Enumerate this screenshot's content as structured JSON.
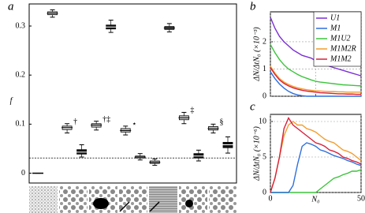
{
  "chart_data": [
    {
      "type": "box",
      "panel": "a",
      "ylabel": "f",
      "ylim": [
        -0.02,
        0.345
      ],
      "yticks": [
        0,
        0.1,
        0.2,
        0.3
      ],
      "hline": 0.031,
      "boxes": [
        {
          "median": 0,
          "q1": 0,
          "q3": 0,
          "whislo": 0,
          "whishi": 0,
          "color": "none"
        },
        {
          "median": 0.326,
          "q1": 0.323,
          "q3": 0.329,
          "whislo": 0.318,
          "whishi": 0.333,
          "color": "#cccccc"
        },
        {
          "median": 0.093,
          "q1": 0.089,
          "q3": 0.096,
          "whislo": 0.082,
          "whishi": 0.101,
          "color": "#dddddd",
          "annotation": "†"
        },
        {
          "median": 0.043,
          "q1": 0.039,
          "q3": 0.048,
          "whislo": 0.033,
          "whishi": 0.058,
          "color": "#111111"
        },
        {
          "median": 0.098,
          "q1": 0.094,
          "q3": 0.101,
          "whislo": 0.088,
          "whishi": 0.106,
          "color": "#cccccc",
          "annotation": "†‡"
        },
        {
          "median": 0.298,
          "q1": 0.294,
          "q3": 0.302,
          "whislo": 0.287,
          "whishi": 0.312,
          "color": "#111111"
        },
        {
          "median": 0.087,
          "q1": 0.084,
          "q3": 0.091,
          "whislo": 0.078,
          "whishi": 0.096,
          "color": "#cccccc",
          "annotation": "⋆"
        },
        {
          "median": 0.033,
          "q1": 0.031,
          "q3": 0.035,
          "whislo": 0.027,
          "whishi": 0.04,
          "color": "#cccccc"
        },
        {
          "median": 0.022,
          "q1": 0.02,
          "q3": 0.025,
          "whislo": 0.016,
          "whishi": 0.029,
          "color": "#cccccc"
        },
        {
          "median": 0.296,
          "q1": 0.293,
          "q3": 0.299,
          "whislo": 0.288,
          "whishi": 0.305,
          "color": "#555555"
        },
        {
          "median": 0.113,
          "q1": 0.109,
          "q3": 0.117,
          "whislo": 0.101,
          "whishi": 0.124,
          "color": "#cccccc",
          "annotation": "‡"
        },
        {
          "median": 0.035,
          "q1": 0.031,
          "q3": 0.04,
          "whislo": 0.025,
          "whishi": 0.047,
          "color": "#111111"
        },
        {
          "median": 0.091,
          "q1": 0.088,
          "q3": 0.095,
          "whislo": 0.082,
          "whishi": 0.1,
          "color": "#cccccc",
          "annotation": "§"
        },
        {
          "median": 0.058,
          "q1": 0.052,
          "q3": 0.063,
          "whislo": 0.041,
          "whishi": 0.074,
          "color": "#111111"
        }
      ]
    },
    {
      "type": "line",
      "panel": "b",
      "ylabel": "ΔN/ΔtN₀ (×10⁻³)",
      "xlim": [
        0,
        50
      ],
      "xticks": [
        0,
        25,
        50
      ],
      "ylim": [
        0,
        3.1
      ],
      "yticks": [
        0,
        1,
        2
      ],
      "grid": true,
      "legend": "upper right",
      "x": [
        0,
        2.5,
        5,
        7.5,
        10,
        12.5,
        15,
        17.5,
        20,
        22.5,
        25,
        27.5,
        30,
        32.5,
        35,
        37.5,
        40,
        42.5,
        45,
        47.5,
        50
      ],
      "series": [
        {
          "name": "U1",
          "color": "#7b2fd6",
          "values": [
            2.9,
            2.5,
            2.2,
            2.0,
            1.85,
            1.7,
            1.6,
            1.5,
            1.45,
            1.4,
            1.3,
            1.25,
            1.2,
            1.1,
            1.05,
            1.0,
            0.95,
            0.9,
            0.85,
            0.8,
            0.75
          ]
        },
        {
          "name": "M1",
          "color": "#2f6fdc",
          "values": [
            0.9,
            0.65,
            0.45,
            0.3,
            0.18,
            0.1,
            0.05,
            0.02,
            0,
            0,
            0,
            0,
            0,
            0,
            0,
            0,
            0,
            0,
            0,
            0,
            0
          ]
        },
        {
          "name": "M1U2",
          "color": "#3cc43c",
          "values": [
            1.9,
            1.6,
            1.35,
            1.15,
            1.0,
            0.9,
            0.8,
            0.72,
            0.66,
            0.6,
            0.55,
            0.52,
            0.5,
            0.48,
            0.46,
            0.44,
            0.42,
            0.41,
            0.4,
            0.39,
            0.38
          ]
        },
        {
          "name": "M1M2R",
          "color": "#f39c2c",
          "values": [
            1.1,
            0.85,
            0.65,
            0.52,
            0.43,
            0.36,
            0.31,
            0.27,
            0.24,
            0.22,
            0.2,
            0.19,
            0.18,
            0.17,
            0.17,
            0.16,
            0.16,
            0.15,
            0.15,
            0.15,
            0.15
          ]
        },
        {
          "name": "M1M2",
          "color": "#d8203a",
          "values": [
            1.05,
            0.8,
            0.6,
            0.47,
            0.38,
            0.31,
            0.26,
            0.22,
            0.19,
            0.17,
            0.15,
            0.13,
            0.12,
            0.11,
            0.1,
            0.09,
            0.09,
            0.08,
            0.08,
            0.07,
            0.07
          ]
        }
      ]
    },
    {
      "type": "line",
      "panel": "c",
      "ylabel": "ΔN/ΔtN₀ (×10⁻⁶)",
      "xlabel": "N₀",
      "xlim": [
        0,
        50
      ],
      "xticks": [
        0,
        50
      ],
      "ylim": [
        0,
        11
      ],
      "yticks": [
        0,
        5,
        10
      ],
      "grid": true,
      "x": [
        0,
        2.5,
        5,
        7.5,
        10,
        12.5,
        15,
        17.5,
        20,
        22.5,
        25,
        27.5,
        30,
        32.5,
        35,
        37.5,
        40,
        42.5,
        45,
        47.5,
        50
      ],
      "series": [
        {
          "color": "#3cc43c",
          "values": [
            0,
            0,
            0,
            0,
            0,
            0,
            0,
            0,
            0,
            0,
            0,
            0.5,
            1,
            1.5,
            2,
            2.2,
            2.5,
            2.7,
            3,
            3,
            3.2
          ]
        },
        {
          "color": "#2f6fdc",
          "values": [
            0,
            0,
            0,
            0,
            0,
            1,
            4,
            6.5,
            7,
            6.8,
            6.5,
            6,
            5.8,
            5.5,
            5.2,
            5,
            4.8,
            4.5,
            4.3,
            4,
            3.8
          ]
        },
        {
          "color": "#f39c2c",
          "values": [
            0,
            2,
            5,
            8,
            9.5,
            10,
            9.5,
            9.5,
            9,
            8.8,
            8.5,
            8,
            7.5,
            7.2,
            7,
            6.5,
            6,
            5.8,
            5.5,
            5,
            4.5
          ]
        },
        {
          "color": "#d8203a",
          "values": [
            0,
            2,
            5,
            9,
            10.5,
            9.5,
            9,
            8.5,
            8,
            7.5,
            7,
            6.8,
            6.5,
            6,
            5.8,
            5.5,
            5,
            4.8,
            4.5,
            4.3,
            4
          ]
        }
      ]
    }
  ]
}
